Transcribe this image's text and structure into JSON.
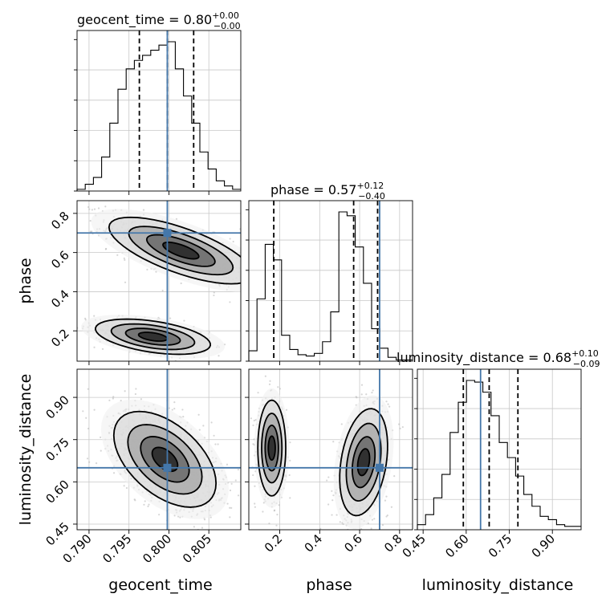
{
  "chart_data": {
    "type": "corner",
    "parameters": [
      "geocent_time",
      "phase",
      "luminosity_distance"
    ],
    "truths": [
      0.7998,
      0.7,
      0.65
    ],
    "truth_color": "#4477aa",
    "axes": {
      "geocent_time": {
        "label": "geocent_time",
        "range": [
          0.7885,
          0.809
        ],
        "ticks": [
          0.79,
          0.795,
          0.8,
          0.805
        ],
        "tick_labels": [
          "0.790",
          "0.795",
          "0.800",
          "0.805"
        ]
      },
      "phase": {
        "label": "phase",
        "range": [
          0.045,
          0.865
        ],
        "ticks": [
          0.2,
          0.4,
          0.6,
          0.8
        ],
        "tick_labels": [
          "0.2",
          "0.4",
          "0.6",
          "0.8"
        ]
      },
      "luminosity_distance": {
        "label": "luminosity_distance",
        "range": [
          0.43,
          1.0
        ],
        "ticks": [
          0.45,
          0.6,
          0.75,
          0.9
        ],
        "tick_labels": [
          "0.45",
          "0.60",
          "0.75",
          "0.90"
        ]
      }
    },
    "titles": [
      {
        "name": "geocent_time",
        "median": "0.80",
        "plus": "+0.00",
        "minus": "−0.00"
      },
      {
        "name": "phase",
        "median": "0.57",
        "plus": "+0.12",
        "minus": "−0.40"
      },
      {
        "name": "luminosity_distance",
        "median": "0.68",
        "plus": "+0.10",
        "minus": "−0.09"
      }
    ],
    "histograms": {
      "geocent_time": {
        "edges_start": 0.7885,
        "bin_width": 0.001025,
        "counts": [
          1,
          4,
          8,
          20,
          40,
          60,
          72,
          77,
          80,
          83,
          86,
          88,
          72,
          56,
          40,
          23,
          13,
          6,
          3,
          1
        ],
        "quantiles": [
          0.7963,
          0.7998,
          0.8031
        ]
      },
      "phase": {
        "edges_start": 0.045,
        "bin_width": 0.041,
        "counts": [
          8,
          48,
          90,
          78,
          20,
          9,
          5,
          4,
          6,
          15,
          38,
          115,
          112,
          88,
          60,
          25,
          10,
          3,
          1,
          1
        ],
        "quantiles": [
          0.17,
          0.57,
          0.69
        ]
      },
      "luminosity_distance": {
        "edges_start": 0.43,
        "bin_width": 0.0285,
        "counts": [
          3,
          9,
          19,
          33,
          58,
          76,
          89,
          88,
          82,
          68,
          52,
          43,
          32,
          21,
          14,
          8,
          6,
          3,
          2,
          2
        ],
        "quantiles": [
          0.59,
          0.68,
          0.78
        ]
      }
    },
    "modes": {
      "geocent_time|phase": [
        {
          "cx": 0.8015,
          "cy": 0.61,
          "sx": 0.0045,
          "sy": 0.085,
          "rho": -0.7,
          "w": 0.62
        },
        {
          "cx": 0.798,
          "cy": 0.17,
          "sx": 0.0036,
          "sy": 0.045,
          "rho": -0.45,
          "w": 0.38
        }
      ],
      "geocent_time|luminosity_distance": [
        {
          "cx": 0.7995,
          "cy": 0.68,
          "sx": 0.0032,
          "sy": 0.085,
          "rho": -0.5,
          "w": 1.0
        }
      ],
      "phase|luminosity_distance": [
        {
          "cx": 0.16,
          "cy": 0.72,
          "sx": 0.035,
          "sy": 0.085,
          "rho": 0.0,
          "w": 0.38
        },
        {
          "cx": 0.62,
          "cy": 0.67,
          "sx": 0.06,
          "sy": 0.095,
          "rho": 0.3,
          "w": 0.62
        }
      ]
    }
  }
}
